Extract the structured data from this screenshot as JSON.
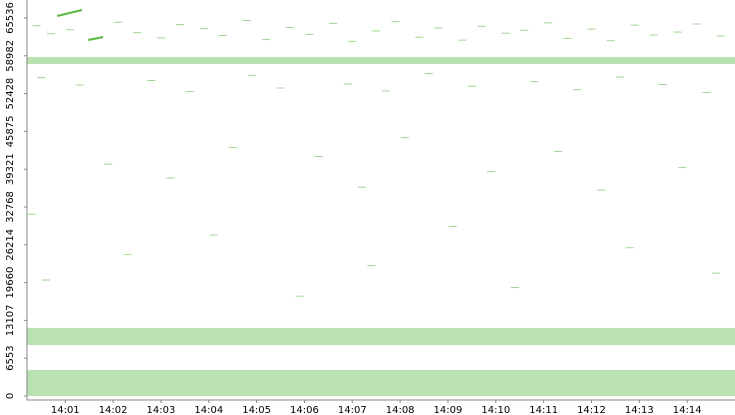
{
  "chart_data": {
    "type": "scatter",
    "xlim": [
      0.2,
      15.0
    ],
    "xticks": [
      {
        "value": 1,
        "label": "14:01"
      },
      {
        "value": 2,
        "label": "14:02"
      },
      {
        "value": 3,
        "label": "14:03"
      },
      {
        "value": 4,
        "label": "14:04"
      },
      {
        "value": 5,
        "label": "14:05"
      },
      {
        "value": 6,
        "label": "14:06"
      },
      {
        "value": 7,
        "label": "14:07"
      },
      {
        "value": 8,
        "label": "14:08"
      },
      {
        "value": 9,
        "label": "14:09"
      },
      {
        "value": 10,
        "label": "14:10"
      },
      {
        "value": 11,
        "label": "14:11"
      },
      {
        "value": 12,
        "label": "14:12"
      },
      {
        "value": 13,
        "label": "14:13"
      },
      {
        "value": 14,
        "label": "14:14"
      }
    ],
    "ylim": [
      -700,
      68660
    ],
    "yticks": [
      0,
      6553,
      13107,
      19660,
      26214,
      32768,
      39321,
      45875,
      52428,
      58982,
      65536
    ],
    "color": "#8fcc7f",
    "bands": {
      "y_low": [
        0,
        8840,
        57560
      ],
      "y_high": [
        4510,
        11790,
        58770
      ],
      "color": "#a9d99c"
    },
    "series": [
      {
        "color": "#9ed592",
        "x": [
          0.4,
          0.7,
          1.1,
          1.6,
          2.1,
          2.5,
          3.0,
          3.4,
          3.9,
          4.3,
          4.8,
          5.2,
          5.7,
          6.1,
          6.6,
          7.0,
          7.5,
          7.9,
          8.4,
          8.8,
          9.3,
          9.7,
          10.2,
          10.6,
          11.1,
          11.5,
          12.0,
          12.4,
          12.9,
          13.3,
          13.8,
          14.2,
          14.7,
          0.5,
          1.3,
          2.8,
          3.6,
          4.9,
          5.5,
          6.9,
          7.7,
          8.6,
          9.5,
          10.8,
          11.7,
          12.6,
          13.5,
          14.4,
          0.3,
          1.9,
          3.2,
          4.5,
          6.3,
          7.2,
          8.1,
          9.9,
          11.3,
          12.2,
          13.9,
          0.6,
          2.3,
          4.1,
          5.9,
          7.4,
          9.1,
          10.4,
          12.8,
          14.6
        ],
        "values": [
          64200,
          62800,
          63500,
          61900,
          64800,
          63000,
          62100,
          64400,
          63700,
          62500,
          65100,
          61800,
          63900,
          62700,
          64600,
          61500,
          63300,
          64900,
          62200,
          63800,
          61700,
          64100,
          62900,
          63400,
          64700,
          62000,
          63600,
          61600,
          64300,
          62600,
          63100,
          64500,
          62400,
          55200,
          53900,
          54700,
          52800,
          55600,
          53400,
          54100,
          52900,
          55900,
          53700,
          54500,
          53100,
          55300,
          54000,
          52600,
          31500,
          40200,
          37800,
          43100,
          41500,
          36200,
          44800,
          38900,
          42400,
          35700,
          39600,
          20100,
          24500,
          27900,
          17300,
          22600,
          29400,
          18800,
          25700,
          21300
        ]
      },
      {
        "color": "#5cb83f",
        "x": [
          0.83,
          1.35,
          null,
          1.48,
          1.79
        ],
        "values": [
          65880,
          66920,
          null,
          61720,
          62240
        ]
      }
    ]
  }
}
